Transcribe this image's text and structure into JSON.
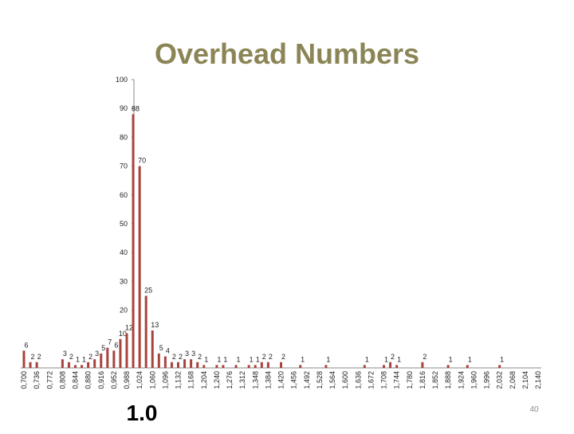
{
  "chart_data": {
    "type": "bar",
    "title": "Overhead Numbers",
    "categories": [
      "0,700",
      null,
      "0,736",
      null,
      "0,772",
      null,
      "0,808",
      null,
      "0,844",
      null,
      "0,880",
      null,
      "0,916",
      null,
      "0,952",
      null,
      "0,988",
      null,
      "1,024",
      null,
      "1,060",
      null,
      "1,096",
      null,
      "1,132",
      null,
      "1,168",
      null,
      "1,204",
      null,
      "1,240",
      null,
      "1,276",
      null,
      "1,312",
      null,
      "1,348",
      null,
      "1,384",
      null,
      "1,420",
      null,
      "1,456",
      null,
      "1,492",
      null,
      "1,528",
      null,
      "1,564",
      null,
      "1,600",
      null,
      "1,636",
      null,
      "1,672",
      null,
      "1,708",
      null,
      "1,744",
      null,
      "1,780",
      null,
      "1,816",
      null,
      "1,852",
      null,
      "1,888",
      null,
      "1,924",
      null,
      "1,960",
      null,
      "1,996",
      null,
      "2,032",
      null,
      "2,068",
      null,
      "2,104",
      null,
      "2,140"
    ],
    "values": [
      6,
      2,
      2,
      null,
      null,
      null,
      3,
      2,
      1,
      1,
      2,
      3,
      5,
      7,
      6,
      10,
      12,
      88,
      70,
      25,
      13,
      5,
      4,
      2,
      2,
      3,
      3,
      2,
      1,
      null,
      1,
      1,
      null,
      1,
      null,
      1,
      1,
      2,
      2,
      null,
      2,
      null,
      null,
      1,
      null,
      null,
      null,
      1,
      null,
      null,
      null,
      null,
      null,
      1,
      null,
      null,
      1,
      2,
      1,
      null,
      null,
      null,
      2,
      null,
      null,
      null,
      1,
      null,
      null,
      1,
      null,
      null,
      null,
      null,
      1,
      null,
      null,
      null,
      null,
      null,
      null
    ],
    "color": "#a8433d",
    "ylim": [
      0,
      100
    ],
    "yticks": [
      20,
      30,
      40,
      50,
      60,
      70,
      80,
      90,
      100
    ],
    "annotation": "1.0",
    "page_number": "40"
  }
}
